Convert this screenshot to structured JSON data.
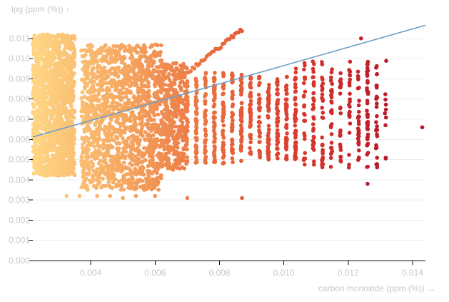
{
  "chart_data": {
    "type": "scatter",
    "title": "",
    "xlabel": "carbon monoxide (ppm (%)) →",
    "ylabel": "lpg (ppm (%)) ↑",
    "xlim": [
      0.0022,
      0.0144
    ],
    "ylim": [
      0,
      0.0117
    ],
    "x_ticks": [
      "0.004",
      "0.006",
      "0.008",
      "0.010",
      "0.012",
      "0.014"
    ],
    "x_tick_values": [
      0.004,
      0.006,
      0.008,
      0.01,
      0.012,
      0.014
    ],
    "y_ticks": [
      "0.000",
      "0.001",
      "0.002",
      "0.003",
      "0.004",
      "0.005",
      "0.006",
      "0.007",
      "0.008",
      "0.009",
      "0.010",
      "0.011"
    ],
    "y_tick_values": [
      0,
      0.001,
      0.002,
      0.003,
      0.004,
      0.005,
      0.006,
      0.007,
      0.008,
      0.009,
      0.01,
      0.011
    ],
    "color_scale": [
      "#fed382",
      "#f5a55f",
      "#ea6a3b",
      "#d8352b",
      "#b7172a"
    ],
    "regression_line": {
      "color": "#6a9ec9",
      "points": [
        [
          0.0022,
          0.00612
        ],
        [
          0.0144,
          0.01165
        ]
      ]
    },
    "point_groups": [
      {
        "x": [
          0.0022,
          0.0035
        ],
        "y": [
          0.0042,
          0.0112
        ],
        "density": "very-high"
      },
      {
        "x": [
          0.0037,
          0.0062
        ],
        "y": [
          0.0035,
          0.0107
        ],
        "density": "very-high"
      },
      {
        "x": [
          0.0062,
          0.007
        ],
        "y": [
          0.0045,
          0.0098
        ],
        "density": "high"
      },
      {
        "x": [
          0.007,
          0.0087
        ],
        "y": [
          0.0048,
          0.0093
        ],
        "density": "medium"
      },
      {
        "x": [
          0.007,
          0.0087
        ],
        "y": [
          0.0093,
          0.01145
        ],
        "density": "ridge"
      },
      {
        "x": [
          0.0087,
          0.0104
        ],
        "y": [
          0.005,
          0.0091
        ],
        "density": "medium"
      },
      {
        "x": [
          0.0104,
          0.0131
        ],
        "y": [
          0.0046,
          0.0099
        ],
        "density": "medium"
      }
    ],
    "outliers": [
      {
        "x": 0.00325,
        "y": 0.0032
      },
      {
        "x": 0.00365,
        "y": 0.0032
      },
      {
        "x": 0.0042,
        "y": 0.0032
      },
      {
        "x": 0.0046,
        "y": 0.0032
      },
      {
        "x": 0.005,
        "y": 0.0031
      },
      {
        "x": 0.0054,
        "y": 0.0032
      },
      {
        "x": 0.006,
        "y": 0.0032
      },
      {
        "x": 0.007,
        "y": 0.0031
      },
      {
        "x": 0.0087,
        "y": 0.0031
      },
      {
        "x": 0.0126,
        "y": 0.0038
      },
      {
        "x": 0.0143,
        "y": 0.0066
      },
      {
        "x": 0.0124,
        "y": 0.011
      }
    ]
  }
}
